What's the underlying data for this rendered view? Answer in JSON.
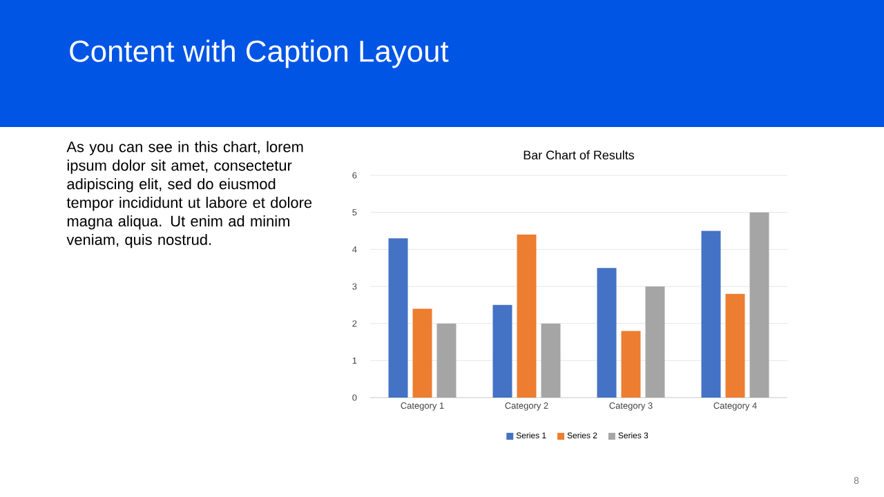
{
  "chart_data": {
    "type": "bar",
    "title": "Content with Caption Layout",
    "subtitle": "Bar Chart of Results",
    "categories": [
      "Category 1",
      "Category 2",
      "Category 3",
      "Category 4"
    ],
    "series": [
      {
        "name": "Series 1",
        "color": "#4472c4",
        "values": [
          4.3,
          2.5,
          3.5,
          4.5
        ]
      },
      {
        "name": "Series 2",
        "color": "#ed7d31",
        "values": [
          2.4,
          4.4,
          1.8,
          2.8
        ]
      },
      {
        "name": "Series 3",
        "color": "#a5a5a5",
        "values": [
          2,
          2,
          3,
          5
        ]
      }
    ],
    "ylim": [
      0,
      6
    ],
    "yticks": [
      0,
      1,
      2,
      3,
      4,
      5,
      6
    ],
    "grid": "y",
    "legend": "bottom",
    "annotations": [
      "As you can see in this chart, lorem ipsum dolor sit amet, consectetur adipiscing elit, sed do eiusmod tempor incididunt ut labore et dolore magna aliqua. Ut enim ad minim veniam, quis nostrud.",
      "8"
    ]
  }
}
